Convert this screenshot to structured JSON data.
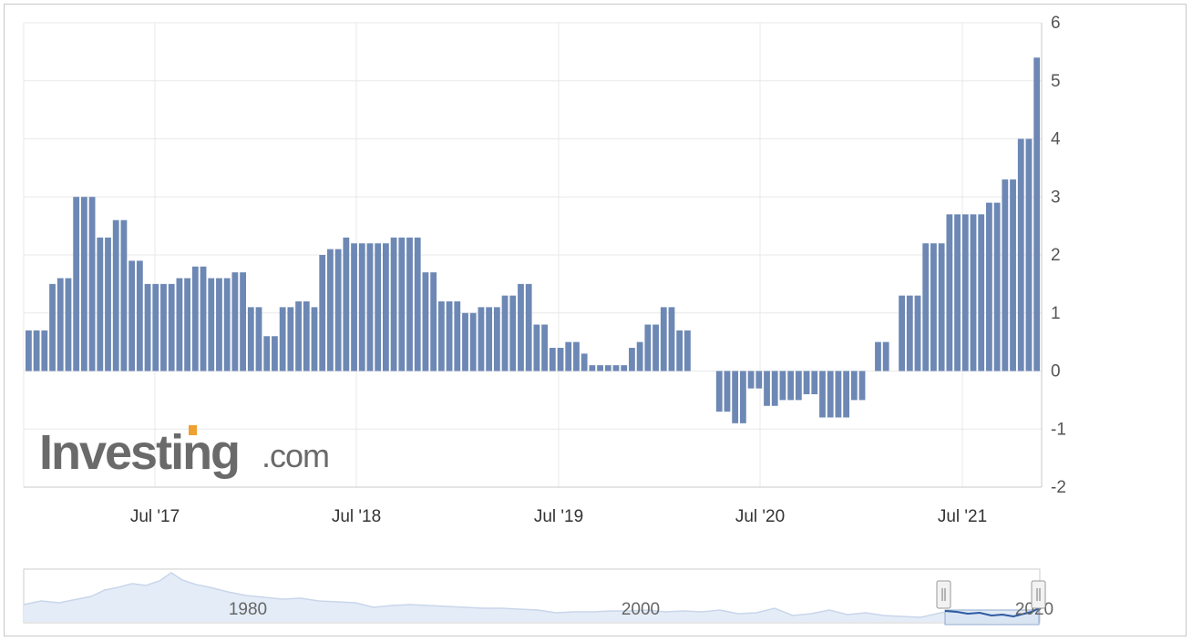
{
  "chart_data": {
    "type": "bar",
    "xlabel": "",
    "ylabel": "",
    "ylim": [
      -2,
      6
    ],
    "yticks": [
      "6",
      "5",
      "4",
      "3",
      "2",
      "1",
      "0",
      "-1",
      "-2"
    ],
    "x_tick_labels": [
      "Jul '17",
      "Jul '18",
      "Jul '19",
      "Jul '20",
      "Jul '21"
    ],
    "grid": true,
    "bar_color": "#6d88b4",
    "values": [
      0.7,
      0.7,
      0.7,
      1.5,
      1.6,
      1.6,
      3.0,
      3.0,
      3.0,
      2.3,
      2.3,
      2.6,
      2.6,
      1.9,
      1.9,
      1.5,
      1.5,
      1.5,
      1.5,
      1.6,
      1.6,
      1.8,
      1.8,
      1.6,
      1.6,
      1.6,
      1.7,
      1.7,
      1.1,
      1.1,
      0.6,
      0.6,
      1.1,
      1.1,
      1.2,
      1.2,
      1.1,
      2.0,
      2.1,
      2.1,
      2.3,
      2.2,
      2.2,
      2.2,
      2.2,
      2.2,
      2.3,
      2.3,
      2.3,
      2.3,
      1.7,
      1.7,
      1.2,
      1.2,
      1.2,
      1.0,
      1.0,
      1.1,
      1.1,
      1.1,
      1.3,
      1.3,
      1.5,
      1.5,
      0.8,
      0.8,
      0.4,
      0.4,
      0.5,
      0.5,
      0.3,
      0.1,
      0.1,
      0.1,
      0.1,
      0.1,
      0.4,
      0.5,
      0.8,
      0.8,
      1.1,
      1.1,
      0.7,
      0.7,
      0,
      0,
      0,
      -0.7,
      -0.7,
      -0.9,
      -0.9,
      -0.3,
      -0.3,
      -0.6,
      -0.6,
      -0.5,
      -0.5,
      -0.5,
      -0.4,
      -0.4,
      -0.8,
      -0.8,
      -0.8,
      -0.8,
      -0.5,
      -0.5,
      0,
      0.5,
      0.5,
      0,
      1.3,
      1.3,
      1.3,
      2.2,
      2.2,
      2.2,
      2.7,
      2.7,
      2.7,
      2.7,
      2.7,
      2.9,
      2.9,
      3.3,
      3.3,
      4.0,
      4.0,
      5.4
    ]
  },
  "watermark": {
    "brand": "Investing",
    "domain": ".com"
  },
  "navigator": {
    "labels": [
      "1980",
      "2000",
      "2020"
    ]
  }
}
